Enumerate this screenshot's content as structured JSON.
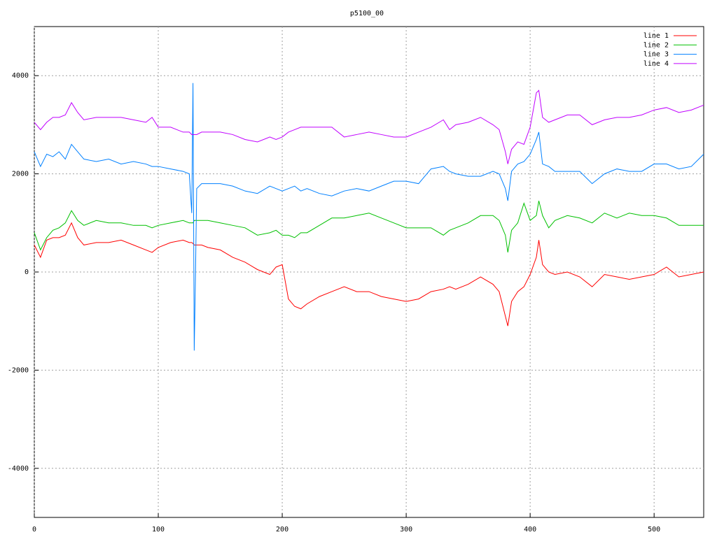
{
  "chart_data": {
    "type": "line",
    "title": "p5100_00",
    "x": [
      0,
      5,
      10,
      15,
      20,
      25,
      30,
      35,
      40,
      50,
      60,
      70,
      80,
      90,
      95,
      100,
      110,
      120,
      125,
      127,
      128,
      129,
      130,
      131,
      135,
      140,
      150,
      160,
      170,
      180,
      190,
      195,
      200,
      205,
      210,
      215,
      220,
      230,
      240,
      250,
      260,
      270,
      280,
      290,
      300,
      310,
      320,
      330,
      335,
      340,
      350,
      360,
      370,
      375,
      380,
      382,
      385,
      390,
      395,
      400,
      405,
      407,
      410,
      415,
      420,
      430,
      440,
      450,
      460,
      470,
      480,
      490,
      500,
      510,
      520,
      530,
      540
    ],
    "series": [
      {
        "name": "line 1",
        "color": "#ff0000",
        "values": [
          550,
          300,
          650,
          700,
          700,
          750,
          1000,
          700,
          550,
          600,
          600,
          650,
          550,
          450,
          400,
          500,
          600,
          650,
          600,
          600,
          580,
          550,
          550,
          550,
          550,
          500,
          450,
          300,
          200,
          50,
          -50,
          100,
          150,
          -550,
          -700,
          -750,
          -650,
          -500,
          -400,
          -300,
          -400,
          -400,
          -500,
          -550,
          -600,
          -550,
          -400,
          -350,
          -300,
          -350,
          -250,
          -100,
          -250,
          -400,
          -900,
          -1100,
          -600,
          -400,
          -300,
          -50,
          300,
          650,
          150,
          0,
          -50,
          0,
          -100,
          -300,
          -50,
          -100,
          -150,
          -100,
          -50,
          100,
          -100,
          -50,
          0
        ]
      },
      {
        "name": "line 2",
        "color": "#00c000",
        "values": [
          800,
          450,
          700,
          850,
          900,
          1000,
          1250,
          1050,
          950,
          1050,
          1000,
          1000,
          950,
          950,
          900,
          950,
          1000,
          1050,
          1000,
          1000,
          1000,
          1050,
          1050,
          1050,
          1050,
          1050,
          1000,
          950,
          900,
          750,
          800,
          850,
          750,
          750,
          700,
          800,
          800,
          950,
          1100,
          1100,
          1150,
          1200,
          1100,
          1000,
          900,
          900,
          900,
          750,
          850,
          900,
          1000,
          1150,
          1150,
          1050,
          750,
          400,
          850,
          1000,
          1400,
          1050,
          1150,
          1450,
          1150,
          900,
          1050,
          1150,
          1100,
          1000,
          1200,
          1100,
          1200,
          1150,
          1150,
          1100,
          950,
          950,
          950
        ]
      },
      {
        "name": "line 3",
        "color": "#0080ff",
        "values": [
          2450,
          2150,
          2400,
          2350,
          2450,
          2300,
          2600,
          2450,
          2300,
          2250,
          2300,
          2200,
          2250,
          2200,
          2150,
          2150,
          2100,
          2050,
          2000,
          1200,
          3850,
          -1600,
          -100,
          1700,
          1800,
          1800,
          1800,
          1750,
          1650,
          1600,
          1750,
          1700,
          1650,
          1700,
          1750,
          1650,
          1700,
          1600,
          1550,
          1650,
          1700,
          1650,
          1750,
          1850,
          1850,
          1800,
          2100,
          2150,
          2050,
          2000,
          1950,
          1950,
          2050,
          2000,
          1700,
          1450,
          2050,
          2200,
          2250,
          2400,
          2700,
          2850,
          2200,
          2150,
          2050,
          2050,
          2050,
          1800,
          2000,
          2100,
          2050,
          2050,
          2200,
          2200,
          2100,
          2150,
          2400
        ]
      },
      {
        "name": "line 4",
        "color": "#c000ff",
        "values": [
          3050,
          2900,
          3050,
          3150,
          3150,
          3200,
          3450,
          3250,
          3100,
          3150,
          3150,
          3150,
          3100,
          3050,
          3150,
          2950,
          2950,
          2850,
          2850,
          2800,
          2800,
          2800,
          2800,
          2800,
          2850,
          2850,
          2850,
          2800,
          2700,
          2650,
          2750,
          2700,
          2750,
          2850,
          2900,
          2950,
          2950,
          2950,
          2950,
          2750,
          2800,
          2850,
          2800,
          2750,
          2750,
          2850,
          2950,
          3100,
          2900,
          3000,
          3050,
          3150,
          3000,
          2900,
          2450,
          2200,
          2500,
          2650,
          2600,
          2950,
          3650,
          3700,
          3150,
          3050,
          3100,
          3200,
          3200,
          3000,
          3100,
          3150,
          3150,
          3200,
          3300,
          3350,
          3250,
          3300,
          3400
        ]
      }
    ],
    "xlim": [
      0,
      540
    ],
    "ylim": [
      -5000,
      5000
    ],
    "xticks": [
      0,
      100,
      200,
      300,
      400,
      500
    ],
    "yticks": [
      -4000,
      -2000,
      0,
      2000,
      4000
    ],
    "grid": true,
    "legend": "upper right"
  }
}
